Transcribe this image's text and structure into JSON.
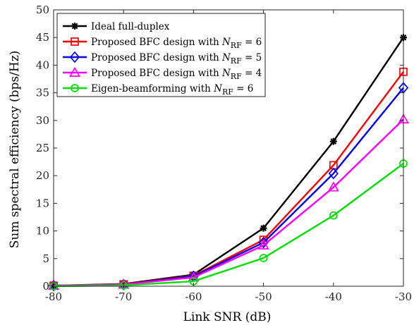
{
  "chart_data": {
    "type": "line",
    "xlabel": "Link SNR (dB)",
    "ylabel": "Sum spectral efficiency (bps/Hz)",
    "x": [
      -80,
      -70,
      -60,
      -50,
      -40,
      -30
    ],
    "xlim": [
      -80,
      -30
    ],
    "ylim": [
      0,
      50
    ],
    "xticks": [
      "-80",
      "-70",
      "-60",
      "-50",
      "-40",
      "-30"
    ],
    "yticks": [
      "0",
      "5",
      "10",
      "15",
      "20",
      "25",
      "30",
      "35",
      "40",
      "45",
      "50"
    ],
    "grid": false,
    "legend_position": "top-left",
    "series": [
      {
        "name": "Ideal full-duplex",
        "color": "#000000",
        "marker": "asterisk",
        "values": [
          0.1,
          0.4,
          2.1,
          10.5,
          26.2,
          45.0
        ]
      },
      {
        "name": "Proposed BFC design with N_RF = 6",
        "legend_prefix": "Proposed BFC design with ",
        "legend_var": "N",
        "legend_sub": "RF",
        "legend_suffix": " = 6",
        "color": "#ff0000",
        "marker": "square",
        "values": [
          0.1,
          0.35,
          1.9,
          8.4,
          21.9,
          38.8
        ]
      },
      {
        "name": "Proposed BFC design with N_RF = 5",
        "legend_prefix": "Proposed BFC design with ",
        "legend_var": "N",
        "legend_sub": "RF",
        "legend_suffix": " = 5",
        "color": "#0000ff",
        "marker": "diamond",
        "values": [
          0.1,
          0.3,
          1.8,
          7.9,
          20.4,
          35.9
        ]
      },
      {
        "name": "Proposed BFC design with N_RF = 4",
        "legend_prefix": "Proposed BFC design with ",
        "legend_var": "N",
        "legend_sub": "RF",
        "legend_suffix": " = 4",
        "color": "#ff00ff",
        "marker": "triangle",
        "values": [
          0.1,
          0.3,
          1.6,
          7.4,
          17.9,
          30.2
        ]
      },
      {
        "name": "Eigen-beamforming with N_RF = 6",
        "legend_prefix": "Eigen-beamforming with ",
        "legend_var": "N",
        "legend_sub": "RF",
        "legend_suffix": " = 6",
        "color": "#00e000",
        "marker": "circle",
        "values": [
          0.0,
          0.15,
          0.9,
          5.1,
          12.8,
          22.2
        ]
      }
    ]
  }
}
